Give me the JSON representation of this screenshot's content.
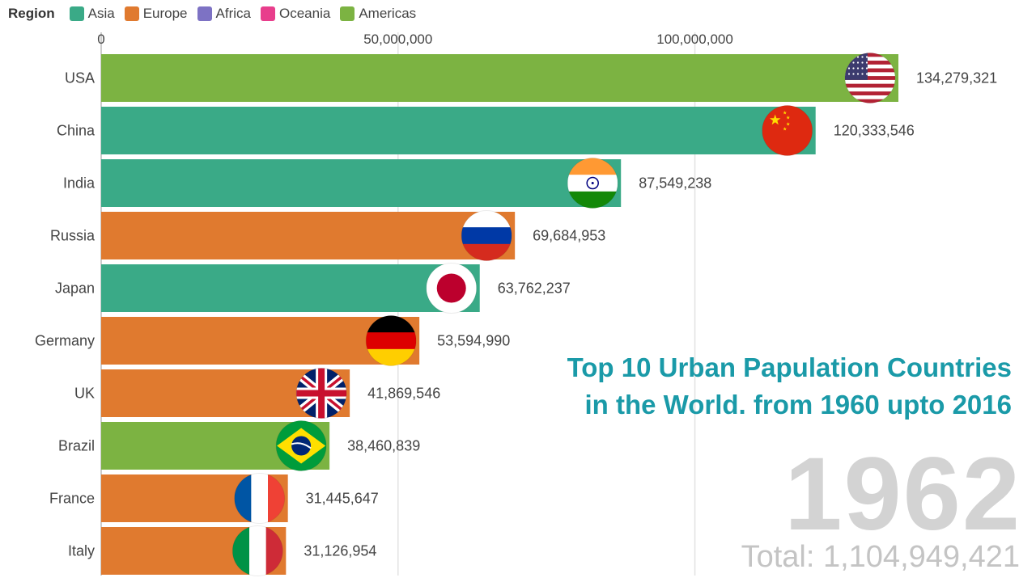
{
  "legend": {
    "title": "Region",
    "items": [
      {
        "label": "Asia",
        "color": "#3aaa87"
      },
      {
        "label": "Europe",
        "color": "#e07a2f"
      },
      {
        "label": "Africa",
        "color": "#7d72c4"
      },
      {
        "label": "Oceania",
        "color": "#e83e8c"
      },
      {
        "label": "Americas",
        "color": "#7cb342"
      }
    ]
  },
  "headline": {
    "line1": "Top 10 Urban Papulation Countries",
    "line2": "in the World. from 1960 upto 2016"
  },
  "year": "1962",
  "total": "Total: 1,104,949,421",
  "chart_data": {
    "type": "bar",
    "orientation": "horizontal",
    "x_axis_ticks": [
      {
        "value": 0,
        "label": "0"
      },
      {
        "value": 50000000,
        "label": "50,000,000"
      },
      {
        "value": 100000000,
        "label": "100,000,000"
      }
    ],
    "xlim": [
      0,
      134279321
    ],
    "grid": true,
    "legend_position": "top-left",
    "bars": [
      {
        "country": "USA",
        "value": 134279321,
        "label": "134,279,321",
        "region": "Americas",
        "flag": "usa-flag"
      },
      {
        "country": "China",
        "value": 120333546,
        "label": "120,333,546",
        "region": "Asia",
        "flag": "china-flag"
      },
      {
        "country": "India",
        "value": 87549238,
        "label": "87,549,238",
        "region": "Asia",
        "flag": "india-flag"
      },
      {
        "country": "Russia",
        "value": 69684953,
        "label": "69,684,953",
        "region": "Europe",
        "flag": "russia-flag"
      },
      {
        "country": "Japan",
        "value": 63762237,
        "label": "63,762,237",
        "region": "Asia",
        "flag": "japan-flag"
      },
      {
        "country": "Germany",
        "value": 53594990,
        "label": "53,594,990",
        "region": "Europe",
        "flag": "germany-flag"
      },
      {
        "country": "UK",
        "value": 41869546,
        "label": "41,869,546",
        "region": "Europe",
        "flag": "uk-flag"
      },
      {
        "country": "Brazil",
        "value": 38460839,
        "label": "38,460,839",
        "region": "Americas",
        "flag": "brazil-flag"
      },
      {
        "country": "France",
        "value": 31445647,
        "label": "31,445,647",
        "region": "Europe",
        "flag": "france-flag"
      },
      {
        "country": "Italy",
        "value": 31126954,
        "label": "31,126,954",
        "region": "Europe",
        "flag": "italy-flag"
      }
    ]
  }
}
